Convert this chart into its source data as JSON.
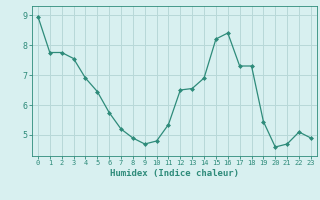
{
  "x": [
    0,
    1,
    2,
    3,
    4,
    5,
    6,
    7,
    8,
    9,
    10,
    11,
    12,
    13,
    14,
    15,
    16,
    17,
    18,
    19,
    20,
    21,
    22,
    23
  ],
  "y": [
    8.95,
    7.75,
    7.75,
    7.55,
    6.9,
    6.45,
    5.75,
    5.2,
    4.9,
    4.7,
    4.8,
    5.35,
    6.5,
    6.55,
    6.9,
    8.2,
    8.4,
    7.3,
    7.3,
    5.45,
    4.6,
    4.7,
    5.1,
    4.9
  ],
  "line_color": "#2e8b7a",
  "marker": "D",
  "marker_size": 2.0,
  "bg_color": "#d8f0f0",
  "grid_color": "#b8d8d8",
  "xlabel": "Humidex (Indice chaleur)",
  "ylim": [
    4.3,
    9.3
  ],
  "xlim": [
    -0.5,
    23.5
  ],
  "yticks": [
    5,
    6,
    7,
    8,
    9
  ],
  "xticks": [
    0,
    1,
    2,
    3,
    4,
    5,
    6,
    7,
    8,
    9,
    10,
    11,
    12,
    13,
    14,
    15,
    16,
    17,
    18,
    19,
    20,
    21,
    22,
    23
  ],
  "tick_color": "#2e8b7a",
  "label_color": "#2e8b7a",
  "spine_color": "#2e8b7a",
  "tick_fontsize": 5.0,
  "ytick_fontsize": 6.0,
  "xlabel_fontsize": 6.5
}
